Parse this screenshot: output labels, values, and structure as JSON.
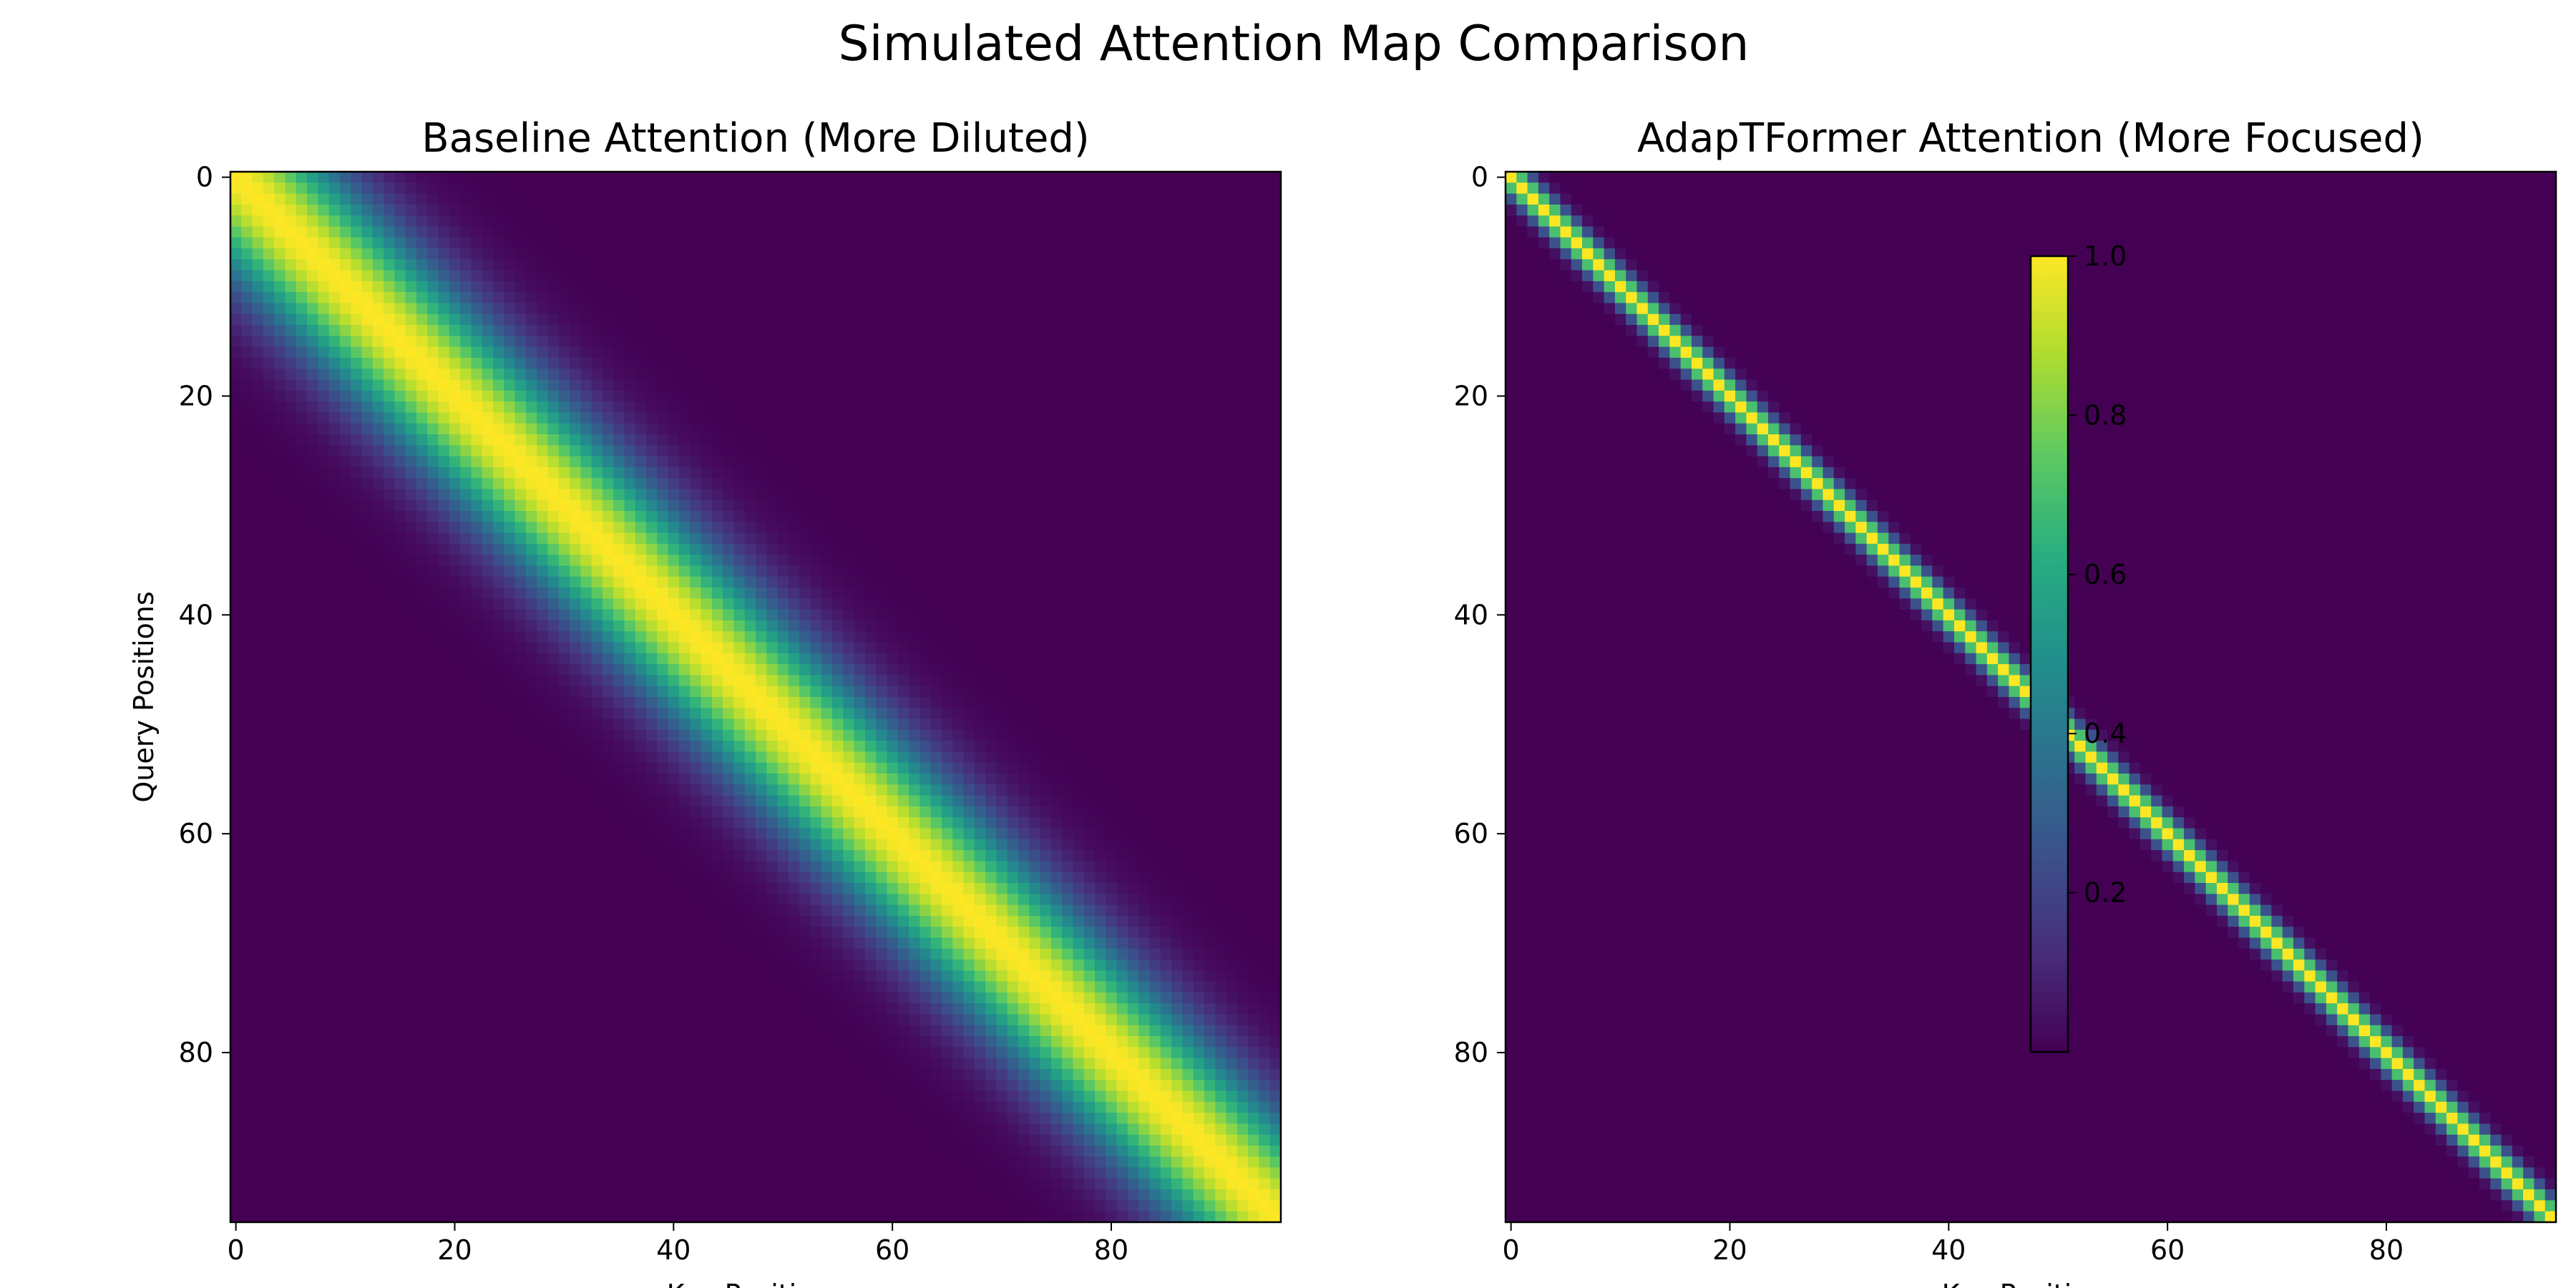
{
  "figure": {
    "suptitle": "Simulated Attention Map Comparison"
  },
  "chart_data": [
    {
      "type": "heatmap",
      "title": "Baseline Attention (More Diluted)",
      "xlabel": "Key Positions",
      "ylabel": "Query Positions",
      "grid_size": 96,
      "pattern": "diagonal band",
      "peak_value": 1.0,
      "band_sigma": 6.5,
      "xlim": [
        0,
        95
      ],
      "ylim": [
        95,
        0
      ],
      "xticks": [
        "0",
        "20",
        "40",
        "60",
        "80"
      ],
      "yticks": [
        "0",
        "20",
        "40",
        "60",
        "80"
      ],
      "colormap": "viridis"
    },
    {
      "type": "heatmap",
      "title": "AdapTFormer Attention (More Focused)",
      "xlabel": "Key Positions",
      "ylabel": "",
      "grid_size": 96,
      "pattern": "diagonal band",
      "peak_value": 1.0,
      "band_sigma": 1.2,
      "xlim": [
        0,
        95
      ],
      "ylim": [
        95,
        0
      ],
      "xticks": [
        "0",
        "20",
        "40",
        "60",
        "80"
      ],
      "yticks": [
        "0",
        "20",
        "40",
        "60",
        "80"
      ],
      "colormap": "viridis"
    }
  ],
  "colorbar": {
    "range": [
      0.0,
      1.0
    ],
    "ticks": [
      "1.0",
      "0.8",
      "0.6",
      "0.4",
      "0.2"
    ],
    "colormap": "viridis"
  }
}
